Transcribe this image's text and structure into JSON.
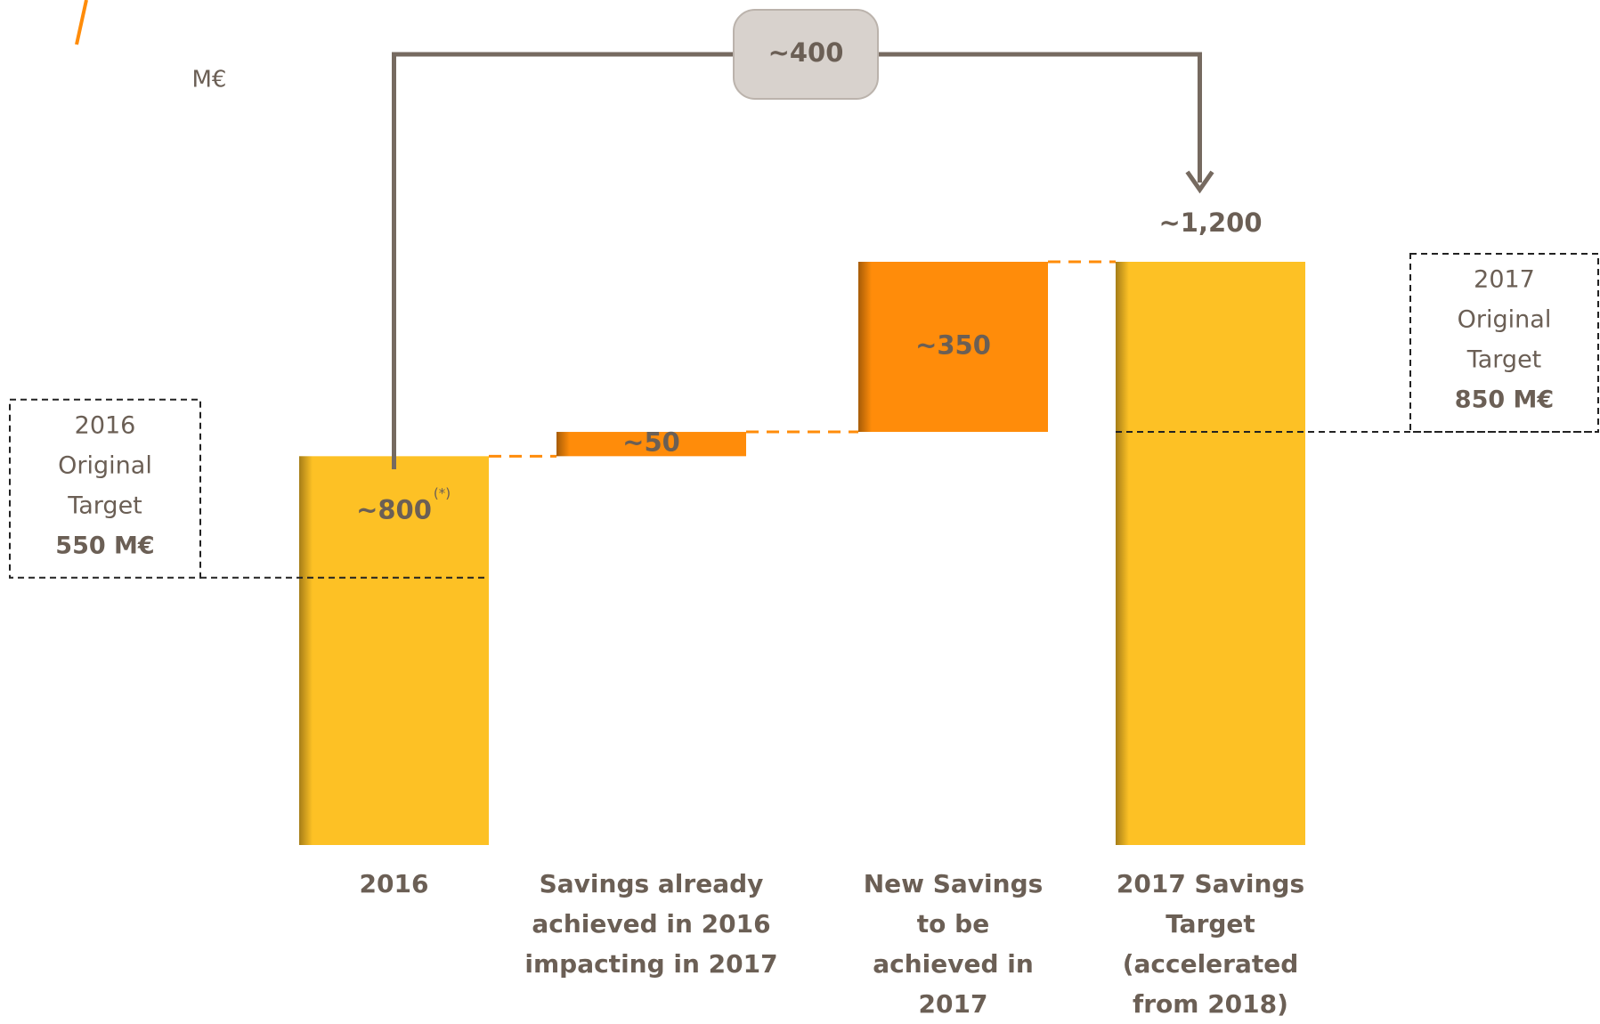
{
  "chart_data": {
    "type": "waterfall",
    "unit_label": "M€",
    "categories": [
      "2016",
      "Savings already achieved in 2016 impacting in 2017",
      "New Savings to be achieved in 2017",
      "2017 Savings Target (accelerated from 2018)"
    ],
    "kinds": [
      "total",
      "increase",
      "increase",
      "total"
    ],
    "values": [
      800,
      50,
      350,
      1200
    ],
    "value_labels": [
      "~800",
      "~50",
      "~350",
      "~1,200"
    ],
    "footnote_mark": "(*)",
    "colors": {
      "total": "#fdc125",
      "increase": "#ff8c0a"
    },
    "bracket": {
      "value": 400,
      "label": "~400"
    },
    "targets": [
      {
        "lines": [
          "2016",
          "Original",
          "Target"
        ],
        "value": 550,
        "label": "550 M€"
      },
      {
        "lines": [
          "2017",
          "Original",
          "Target"
        ],
        "value": 850,
        "label": "850 M€"
      }
    ]
  }
}
